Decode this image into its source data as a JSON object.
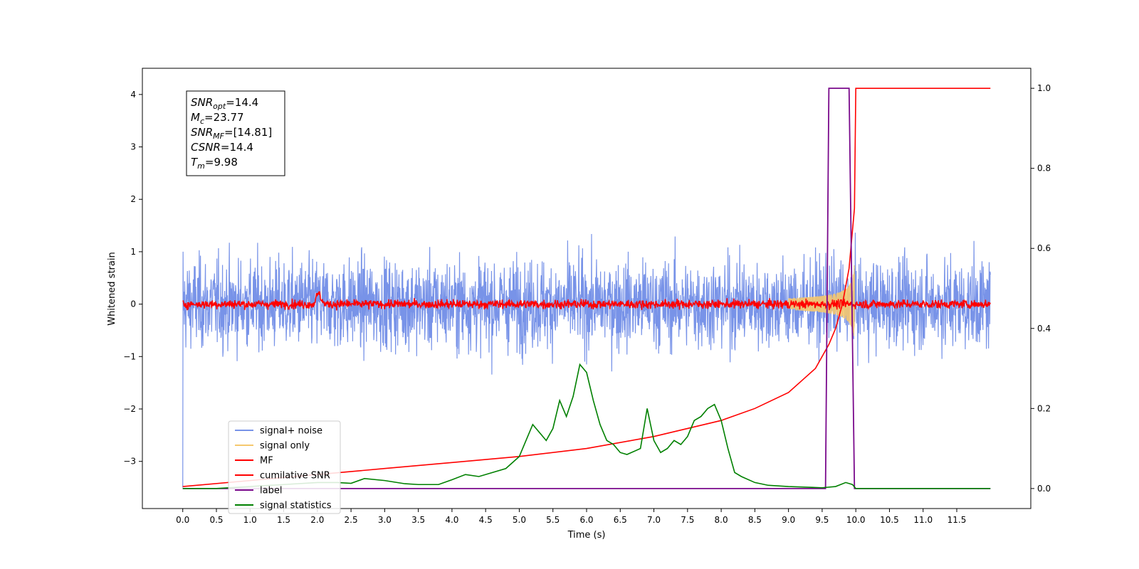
{
  "chart_data": {
    "type": "line",
    "title": "",
    "xlabel": "Time (s)",
    "ylabel": "Whitened strain",
    "xlim": [
      -0.6,
      12.6
    ],
    "ylim_left": [
      -3.9,
      4.5
    ],
    "ylim_right": [
      -0.05,
      1.05
    ],
    "x_ticks": [
      "0.0",
      "0.5",
      "1.0",
      "1.5",
      "2.0",
      "2.5",
      "3.0",
      "3.5",
      "4.0",
      "4.5",
      "5.0",
      "5.5",
      "6.0",
      "6.5",
      "7.0",
      "7.5",
      "8.0",
      "8.5",
      "9.0",
      "9.5",
      "10.0",
      "10.5",
      "11.0",
      "11.5"
    ],
    "y_ticks_left": [
      "−3",
      "−2",
      "−1",
      "0",
      "1",
      "2",
      "3",
      "4"
    ],
    "y_ticks_right": [
      "0.0",
      "0.2",
      "0.4",
      "0.6",
      "0.8",
      "1.0"
    ],
    "grid": false,
    "legend_position": "lower-left",
    "annotation": {
      "lines": [
        {
          "var": "SNR",
          "sub": "opt",
          "value": "=14.4"
        },
        {
          "var": "M",
          "sub": "c",
          "value": "=23.77"
        },
        {
          "var": "SNR",
          "sub": "MF",
          "value": "=[14.81]"
        },
        {
          "var": "CSNR",
          "sub": "",
          "value": "=14.4"
        },
        {
          "var": "T",
          "sub": "m",
          "value": "=9.98"
        }
      ]
    },
    "series": [
      {
        "name": "signal+ noise",
        "color": "#7893e8",
        "axis": "left",
        "noise_amplitude": 0.6,
        "x_range": [
          0.0,
          12.0
        ]
      },
      {
        "name": "signal only",
        "color": "#f5c86e",
        "axis": "left",
        "chirp_end": 9.98,
        "peak_amplitude": 0.8
      },
      {
        "name": "MF",
        "color": "#ff0000",
        "axis": "left",
        "noise_amplitude": 0.06,
        "x_range": [
          0.0,
          12.0
        ]
      },
      {
        "name": "cumilative SNR",
        "color": "#ff0000",
        "axis": "right",
        "x": [
          0.0,
          1.0,
          2.0,
          3.0,
          4.0,
          5.0,
          6.0,
          7.0,
          7.5,
          8.0,
          8.5,
          9.0,
          9.2,
          9.4,
          9.6,
          9.7,
          9.8,
          9.9,
          9.98,
          10.0,
          11.0,
          12.0
        ],
        "values": [
          0.005,
          0.02,
          0.035,
          0.05,
          0.065,
          0.08,
          0.1,
          0.13,
          0.15,
          0.17,
          0.2,
          0.24,
          0.27,
          0.3,
          0.36,
          0.4,
          0.46,
          0.55,
          0.7,
          1.0,
          1.0,
          1.0
        ]
      },
      {
        "name": "label",
        "color": "#7a0a8c",
        "axis": "right",
        "x": [
          0.0,
          9.55,
          9.6,
          9.9,
          9.98,
          12.0
        ],
        "values": [
          0.0,
          0.0,
          1.0,
          1.0,
          0.0,
          0.0
        ]
      },
      {
        "name": "signal statistics",
        "color": "#008000",
        "axis": "right",
        "x": [
          0.0,
          0.5,
          1.0,
          1.5,
          2.0,
          2.3,
          2.5,
          2.7,
          3.0,
          3.3,
          3.5,
          3.8,
          4.0,
          4.2,
          4.4,
          4.6,
          4.8,
          5.0,
          5.1,
          5.2,
          5.3,
          5.4,
          5.5,
          5.6,
          5.7,
          5.8,
          5.9,
          6.0,
          6.1,
          6.2,
          6.3,
          6.4,
          6.5,
          6.6,
          6.8,
          6.9,
          7.0,
          7.1,
          7.2,
          7.3,
          7.4,
          7.5,
          7.6,
          7.7,
          7.8,
          7.9,
          8.0,
          8.1,
          8.2,
          8.3,
          8.5,
          8.7,
          9.0,
          9.5,
          9.7,
          9.85,
          9.95,
          10.0,
          11.0,
          12.0
        ],
        "values": [
          0.0,
          0.0,
          0.005,
          0.01,
          0.015,
          0.015,
          0.013,
          0.025,
          0.02,
          0.012,
          0.01,
          0.01,
          0.022,
          0.035,
          0.03,
          0.04,
          0.05,
          0.08,
          0.12,
          0.16,
          0.14,
          0.12,
          0.15,
          0.22,
          0.18,
          0.23,
          0.31,
          0.29,
          0.22,
          0.16,
          0.12,
          0.11,
          0.09,
          0.085,
          0.1,
          0.2,
          0.12,
          0.09,
          0.1,
          0.12,
          0.11,
          0.13,
          0.17,
          0.18,
          0.2,
          0.21,
          0.17,
          0.1,
          0.04,
          0.03,
          0.015,
          0.008,
          0.005,
          0.002,
          0.005,
          0.015,
          0.01,
          0.0,
          0.0,
          0.0
        ]
      }
    ]
  }
}
